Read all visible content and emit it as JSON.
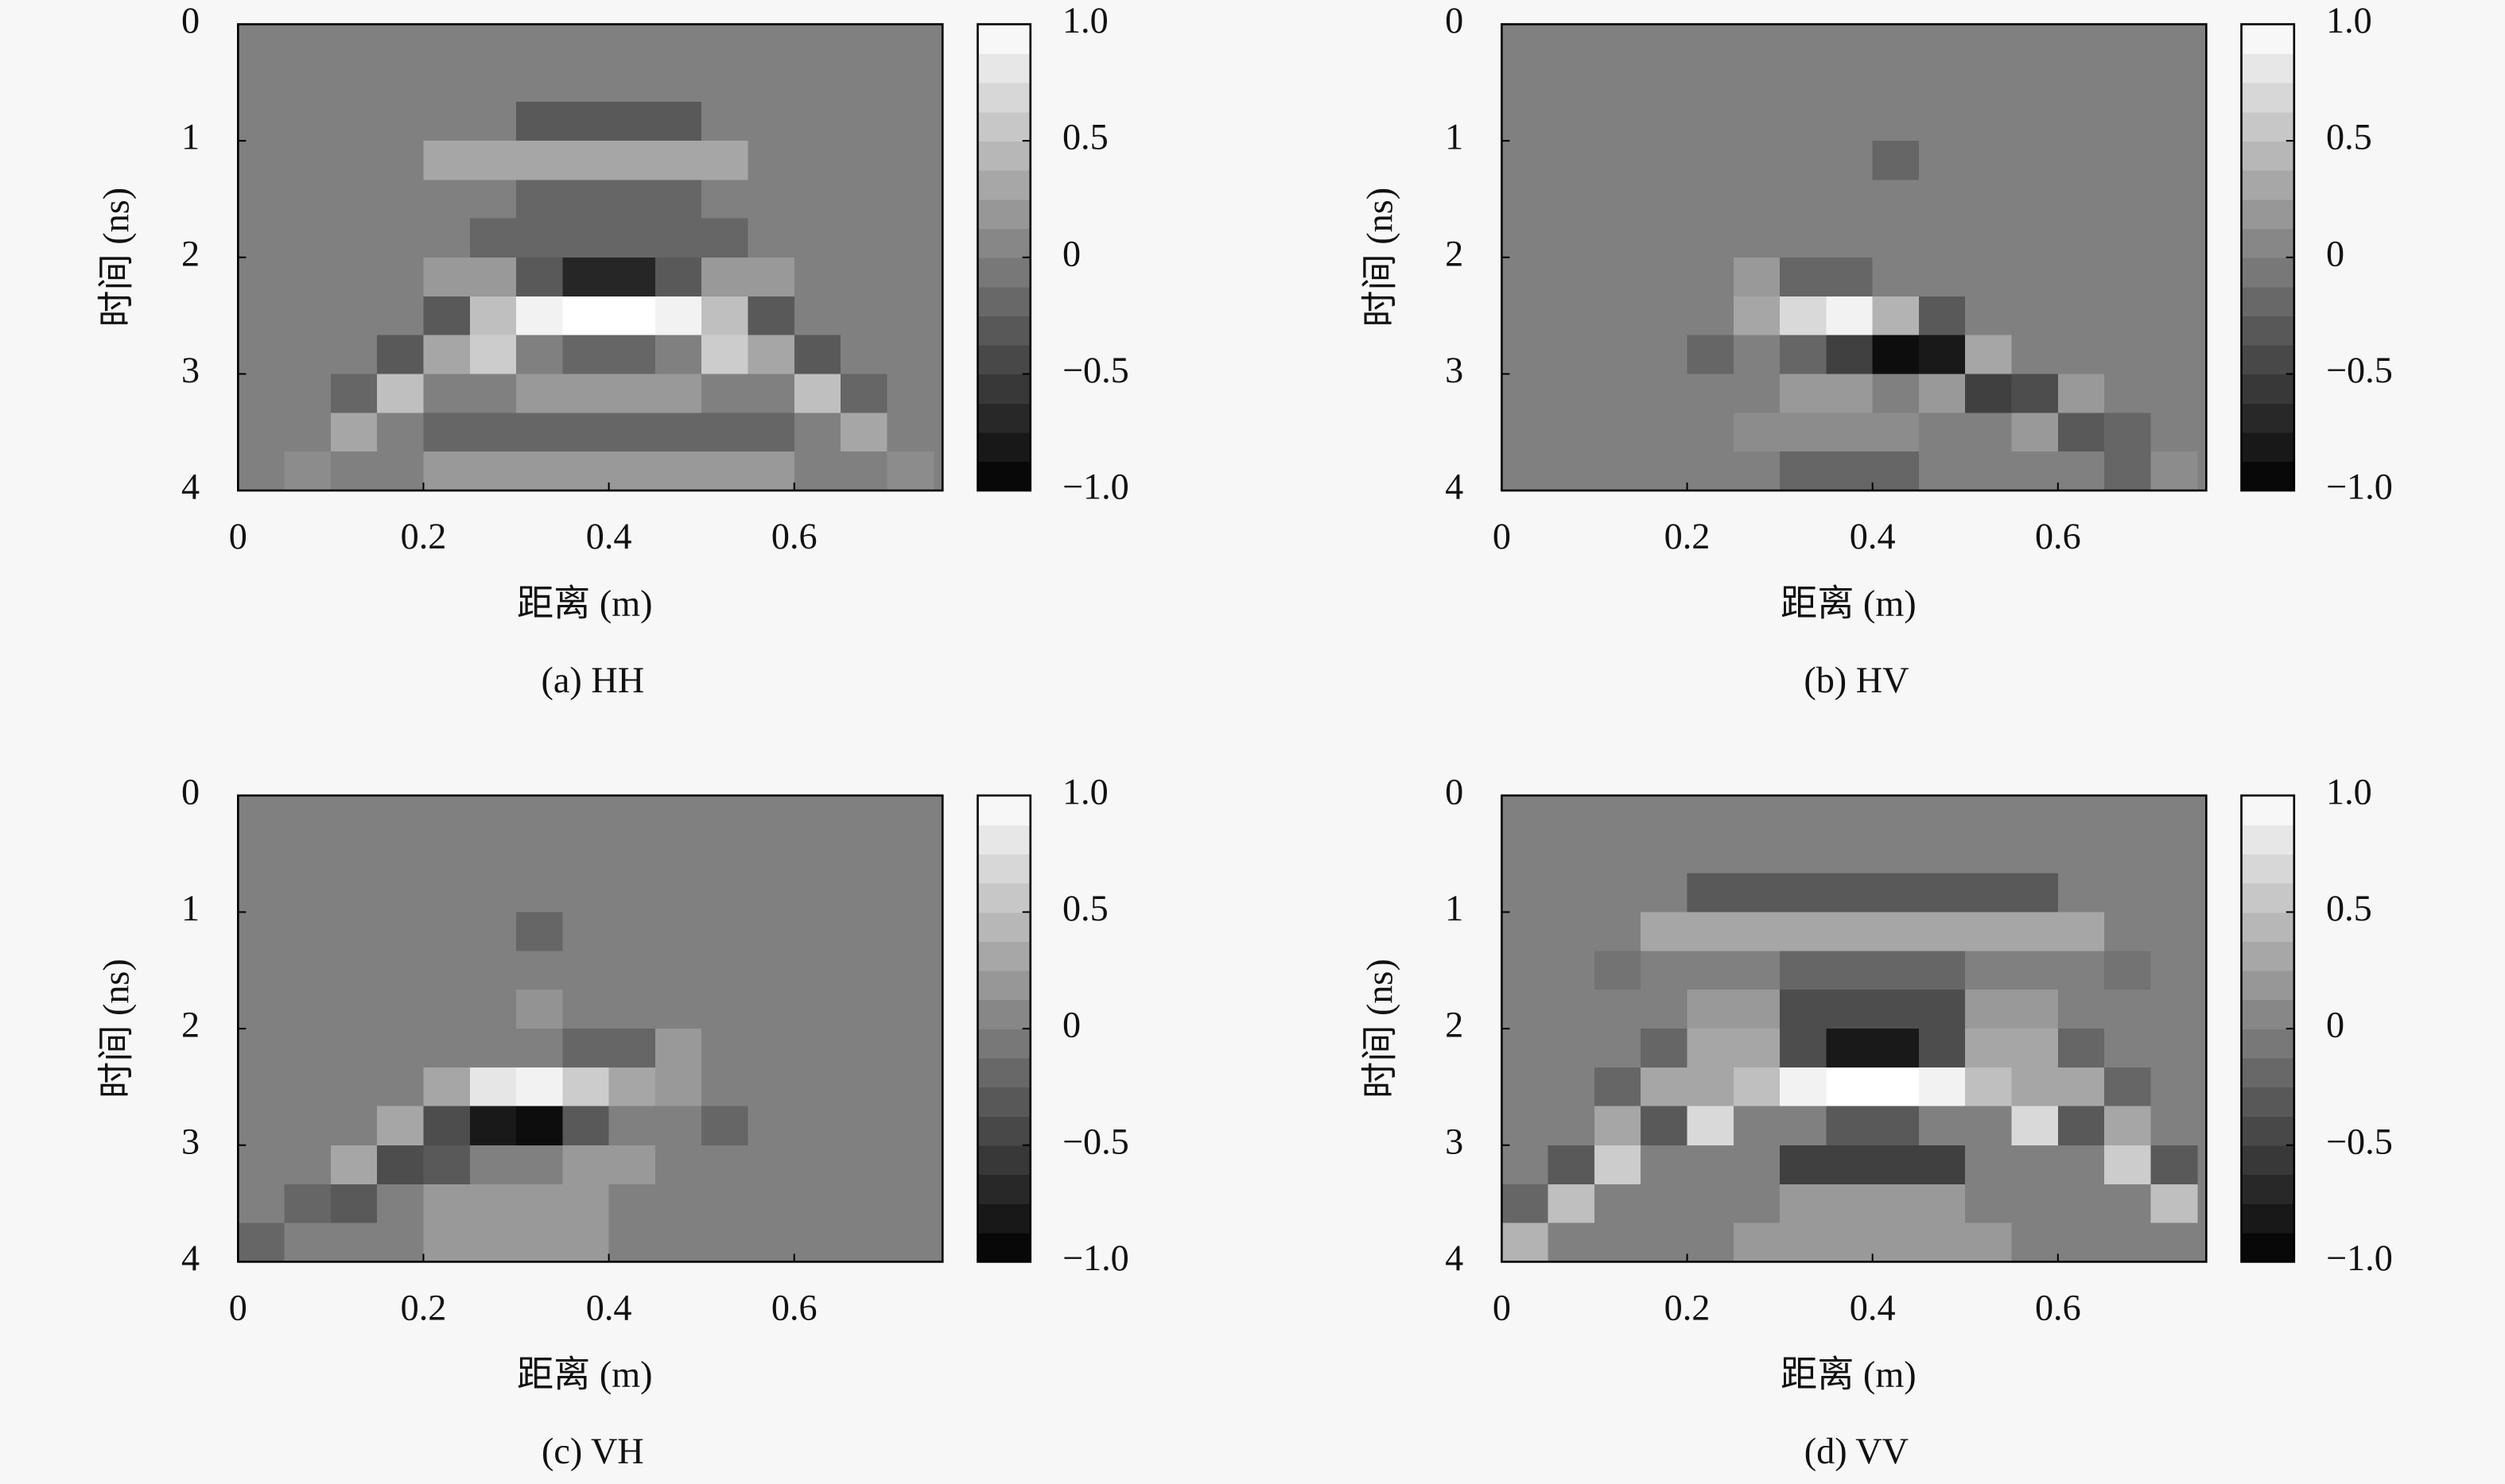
{
  "chart_data": [
    {
      "type": "heatmap",
      "caption": "(a) HH",
      "xlabel": "距离 (m)",
      "ylabel": "时间 (ns)",
      "colormap": "gray",
      "x": [
        0.025,
        0.075,
        0.125,
        0.175,
        0.225,
        0.275,
        0.325,
        0.375,
        0.425,
        0.475,
        0.525,
        0.575,
        0.625,
        0.675,
        0.725
      ],
      "y": [
        0.17,
        0.5,
        0.83,
        1.17,
        1.5,
        1.83,
        2.17,
        2.5,
        2.83,
        3.17,
        3.5,
        3.83
      ],
      "z": [
        [
          0,
          0,
          0,
          0,
          0,
          0,
          0,
          0,
          0,
          0,
          0,
          0,
          0,
          0,
          0
        ],
        [
          0,
          0,
          0,
          0,
          0,
          0,
          0,
          0,
          0,
          0,
          0,
          0,
          0,
          0,
          0
        ],
        [
          0,
          0,
          0,
          0,
          0,
          0,
          -0.3,
          -0.3,
          -0.3,
          -0.3,
          0,
          0,
          0,
          0,
          0
        ],
        [
          0,
          0,
          0,
          0,
          0.3,
          0.3,
          0.3,
          0.3,
          0.3,
          0.3,
          0.3,
          0,
          0,
          0,
          0
        ],
        [
          0,
          0,
          0,
          0,
          0,
          0,
          -0.2,
          -0.2,
          -0.2,
          -0.2,
          0,
          0,
          0,
          0,
          0
        ],
        [
          0,
          0,
          0,
          0,
          0,
          -0.2,
          -0.2,
          -0.2,
          -0.2,
          -0.2,
          -0.2,
          0,
          0,
          0,
          0
        ],
        [
          0,
          0,
          0,
          0,
          0.2,
          0.2,
          -0.3,
          -0.7,
          -0.7,
          -0.3,
          0.2,
          0.2,
          0,
          0,
          0
        ],
        [
          0,
          0,
          0,
          0,
          -0.3,
          0.5,
          0.9,
          1,
          1,
          0.9,
          0.5,
          -0.3,
          0,
          0,
          0
        ],
        [
          0,
          0,
          0,
          -0.3,
          0.3,
          0.6,
          0,
          -0.2,
          -0.2,
          0,
          0.6,
          0.3,
          -0.3,
          0,
          0
        ],
        [
          0,
          0,
          -0.2,
          0.5,
          0,
          0,
          0.2,
          0.2,
          0.2,
          0.2,
          0,
          0,
          0.5,
          -0.2,
          0
        ],
        [
          0,
          0,
          0.3,
          0,
          -0.2,
          -0.2,
          -0.2,
          -0.2,
          -0.2,
          -0.2,
          -0.2,
          -0.2,
          0,
          0.3,
          0
        ],
        [
          0,
          0.1,
          0,
          0,
          0.2,
          0.2,
          0.2,
          0.2,
          0.2,
          0.2,
          0.2,
          0.2,
          0,
          0,
          0.1
        ]
      ],
      "xlim": [
        0,
        0.76
      ],
      "ylim": [
        4,
        0
      ],
      "xticks": [
        0,
        0.2,
        0.4,
        0.6
      ],
      "yticks": [
        0,
        1,
        2,
        3,
        4
      ],
      "zlim": [
        -1,
        1
      ],
      "zticks": [
        {
          "value": 1,
          "label": "1.0"
        },
        0.5,
        0,
        {
          "value": -0.5,
          "label": "−0.5"
        },
        {
          "value": -1,
          "label": "−1.0"
        }
      ]
    },
    {
      "type": "heatmap",
      "caption": "(b) HV",
      "xlabel": "距离 (m)",
      "ylabel": "时间 (ns)",
      "colormap": "gray",
      "x": [
        0.025,
        0.075,
        0.125,
        0.175,
        0.225,
        0.275,
        0.325,
        0.375,
        0.425,
        0.475,
        0.525,
        0.575,
        0.625,
        0.675,
        0.725
      ],
      "y": [
        0.17,
        0.5,
        0.83,
        1.17,
        1.5,
        1.83,
        2.17,
        2.5,
        2.83,
        3.17,
        3.5,
        3.83
      ],
      "z": [
        [
          0,
          0,
          0,
          0,
          0,
          0,
          0,
          0,
          0,
          0,
          0,
          0,
          0,
          0,
          0
        ],
        [
          0,
          0,
          0,
          0,
          0,
          0,
          0,
          0,
          0,
          0,
          0,
          0,
          0,
          0,
          0
        ],
        [
          0,
          0,
          0,
          0,
          0,
          0,
          0,
          0,
          0,
          0,
          0,
          0,
          0,
          0,
          0
        ],
        [
          0,
          0,
          0,
          0,
          0,
          0,
          0,
          0,
          -0.2,
          0,
          0,
          0,
          0,
          0,
          0
        ],
        [
          0,
          0,
          0,
          0,
          0,
          0,
          0,
          0,
          0,
          0,
          0,
          0,
          0,
          0,
          0
        ],
        [
          0,
          0,
          0,
          0,
          0,
          0,
          0,
          0,
          0,
          0,
          0,
          0,
          0,
          0,
          0
        ],
        [
          0,
          0,
          0,
          0,
          0,
          0.2,
          -0.2,
          -0.2,
          0,
          0,
          0,
          0,
          0,
          0,
          0
        ],
        [
          0,
          0,
          0,
          0,
          0,
          0.3,
          0.7,
          0.9,
          0.4,
          -0.3,
          0,
          0,
          0,
          0,
          0
        ],
        [
          0,
          0,
          0,
          0,
          -0.2,
          0,
          -0.2,
          -0.5,
          -0.9,
          -0.8,
          0.3,
          0,
          0,
          0,
          0
        ],
        [
          0,
          0,
          0,
          0,
          0,
          0,
          0.2,
          0.2,
          0,
          0.2,
          -0.5,
          -0.4,
          0.2,
          0,
          0
        ],
        [
          0,
          0,
          0,
          0,
          0,
          0.1,
          0.1,
          0.1,
          0.1,
          0,
          0,
          0.2,
          -0.3,
          -0.2,
          0
        ],
        [
          0,
          0,
          0,
          0,
          0,
          0,
          -0.2,
          -0.2,
          -0.2,
          0,
          0,
          0,
          0,
          -0.2,
          0.1
        ]
      ],
      "xlim": [
        0,
        0.76
      ],
      "ylim": [
        4,
        0
      ],
      "xticks": [
        0,
        0.2,
        0.4,
        0.6
      ],
      "yticks": [
        0,
        1,
        2,
        3,
        4
      ],
      "zlim": [
        -1,
        1
      ],
      "zticks": [
        {
          "value": 1,
          "label": "1.0"
        },
        0.5,
        0,
        {
          "value": -0.5,
          "label": "−0.5"
        },
        {
          "value": -1,
          "label": "−1.0"
        }
      ]
    },
    {
      "type": "heatmap",
      "caption": "(c) VH",
      "xlabel": "距离 (m)",
      "ylabel": "时间 (ns)",
      "colormap": "gray",
      "x": [
        0.025,
        0.075,
        0.125,
        0.175,
        0.225,
        0.275,
        0.325,
        0.375,
        0.425,
        0.475,
        0.525,
        0.575,
        0.625,
        0.675,
        0.725
      ],
      "y": [
        0.17,
        0.5,
        0.83,
        1.17,
        1.5,
        1.83,
        2.17,
        2.5,
        2.83,
        3.17,
        3.5,
        3.83
      ],
      "z": [
        [
          0,
          0,
          0,
          0,
          0,
          0,
          0,
          0,
          0,
          0,
          0,
          0,
          0,
          0,
          0
        ],
        [
          0,
          0,
          0,
          0,
          0,
          0,
          0,
          0,
          0,
          0,
          0,
          0,
          0,
          0,
          0
        ],
        [
          0,
          0,
          0,
          0,
          0,
          0,
          0,
          0,
          0,
          0,
          0,
          0,
          0,
          0,
          0
        ],
        [
          0,
          0,
          0,
          0,
          0,
          0,
          -0.2,
          0,
          0,
          0,
          0,
          0,
          0,
          0,
          0
        ],
        [
          0,
          0,
          0,
          0,
          0,
          0,
          0,
          0,
          0,
          0,
          0,
          0,
          0,
          0,
          0
        ],
        [
          0,
          0,
          0,
          0,
          0,
          0,
          0.15,
          0,
          0,
          0,
          0,
          0,
          0,
          0,
          0
        ],
        [
          0,
          0,
          0,
          0,
          0,
          0,
          0,
          -0.2,
          -0.2,
          0.2,
          0,
          0,
          0,
          0,
          0
        ],
        [
          0,
          0,
          0,
          0,
          0.3,
          0.8,
          0.9,
          0.6,
          0.3,
          0.2,
          0,
          0,
          0,
          0,
          0
        ],
        [
          0,
          0,
          0,
          0.3,
          -0.4,
          -0.8,
          -0.9,
          -0.3,
          0,
          0,
          -0.2,
          0,
          0,
          0,
          0
        ],
        [
          0,
          0,
          0.3,
          -0.4,
          -0.3,
          0,
          0,
          0.2,
          0.2,
          0,
          0,
          0,
          0,
          0,
          0
        ],
        [
          0,
          -0.2,
          -0.3,
          0,
          0.2,
          0.2,
          0.2,
          0.2,
          0,
          0,
          0,
          0,
          0,
          0,
          0
        ],
        [
          -0.2,
          0,
          0,
          0,
          0.2,
          0.2,
          0.2,
          0.2,
          0,
          0,
          0,
          0,
          0,
          0,
          0
        ]
      ],
      "xlim": [
        0,
        0.76
      ],
      "ylim": [
        4,
        0
      ],
      "xticks": [
        0,
        0.2,
        0.4,
        0.6
      ],
      "yticks": [
        0,
        1,
        2,
        3,
        4
      ],
      "zlim": [
        -1,
        1
      ],
      "zticks": [
        {
          "value": 1,
          "label": "1.0"
        },
        0.5,
        0,
        {
          "value": -0.5,
          "label": "−0.5"
        },
        {
          "value": -1,
          "label": "−1.0"
        }
      ]
    },
    {
      "type": "heatmap",
      "caption": "(d) VV",
      "xlabel": "距离 (m)",
      "ylabel": "时间 (ns)",
      "colormap": "gray",
      "x": [
        0.025,
        0.075,
        0.125,
        0.175,
        0.225,
        0.275,
        0.325,
        0.375,
        0.425,
        0.475,
        0.525,
        0.575,
        0.625,
        0.675,
        0.725
      ],
      "y": [
        0.17,
        0.5,
        0.83,
        1.17,
        1.5,
        1.83,
        2.17,
        2.5,
        2.83,
        3.17,
        3.5,
        3.83
      ],
      "z": [
        [
          0,
          0,
          0,
          0,
          0,
          0,
          0,
          0,
          0,
          0,
          0,
          0,
          0,
          0,
          0
        ],
        [
          0,
          0,
          0,
          0,
          0,
          0,
          0,
          0,
          0,
          0,
          0,
          0,
          0,
          0,
          0
        ],
        [
          0,
          0,
          0,
          0,
          -0.3,
          -0.3,
          -0.3,
          -0.3,
          -0.3,
          -0.3,
          -0.3,
          -0.3,
          0,
          0,
          0
        ],
        [
          0,
          0,
          0,
          0.3,
          0.3,
          0.3,
          0.3,
          0.3,
          0.3,
          0.3,
          0.3,
          0.3,
          0.3,
          0,
          0
        ],
        [
          0,
          0,
          -0.1,
          0,
          0,
          0,
          -0.2,
          -0.2,
          -0.2,
          -0.2,
          0,
          0,
          0,
          -0.1,
          0
        ],
        [
          0,
          0,
          0,
          0,
          0.2,
          0.2,
          -0.4,
          -0.4,
          -0.4,
          -0.4,
          0.2,
          0.2,
          0,
          0,
          0
        ],
        [
          0,
          0,
          0,
          -0.2,
          0.3,
          0.3,
          -0.4,
          -0.8,
          -0.8,
          -0.4,
          0.3,
          0.3,
          -0.2,
          0,
          0
        ],
        [
          0,
          0,
          -0.2,
          0.3,
          0.3,
          0.5,
          0.9,
          1,
          1,
          0.9,
          0.5,
          0.3,
          0.3,
          -0.2,
          0
        ],
        [
          0,
          0,
          0.3,
          -0.3,
          0.7,
          0,
          0,
          -0.3,
          -0.3,
          0,
          0,
          0.7,
          -0.3,
          0.3,
          0
        ],
        [
          0,
          -0.3,
          0.6,
          0,
          0,
          0,
          -0.5,
          -0.5,
          -0.5,
          -0.5,
          0,
          0,
          0,
          0.6,
          -0.3
        ],
        [
          -0.2,
          0.5,
          0,
          0,
          0,
          0,
          0.2,
          0.2,
          0.2,
          0.2,
          0,
          0,
          0,
          0,
          0.5
        ],
        [
          0.4,
          0,
          0,
          0,
          0,
          0.2,
          0.2,
          0.2,
          0.2,
          0.2,
          0.2,
          0,
          0,
          0,
          0
        ]
      ],
      "xlim": [
        0,
        0.76
      ],
      "ylim": [
        4,
        0
      ],
      "xticks": [
        0,
        0.2,
        0.4,
        0.6
      ],
      "yticks": [
        0,
        1,
        2,
        3,
        4
      ],
      "zlim": [
        -1,
        1
      ],
      "zticks": [
        {
          "value": 1,
          "label": "1.0"
        },
        0.5,
        0,
        {
          "value": -0.5,
          "label": "−0.5"
        },
        {
          "value": -1,
          "label": "−1.0"
        }
      ]
    }
  ]
}
